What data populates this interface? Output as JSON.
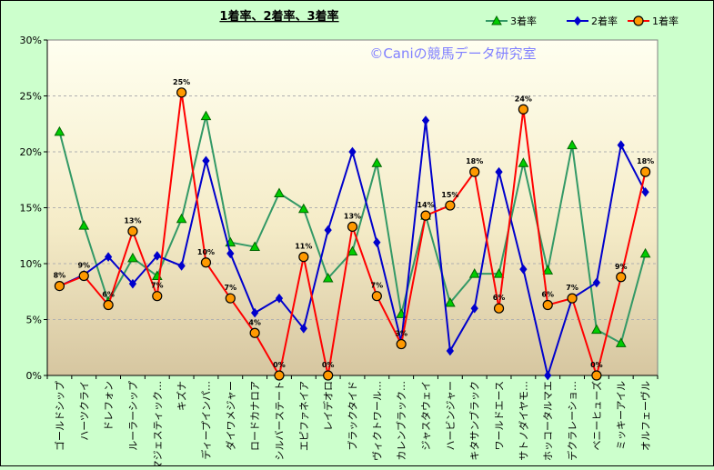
{
  "chart_data": {
    "type": "line",
    "title": "1着率、2着率、3着率",
    "watermark": "©Caniの競馬データ研究室",
    "ylim": [
      0,
      30
    ],
    "yticks": [
      "0%",
      "5%",
      "10%",
      "15%",
      "20%",
      "25%",
      "30%"
    ],
    "legend_position": "top-right",
    "grid": true,
    "categories": [
      "ゴールドシップ",
      "ハーツクライ",
      "ドレフォン",
      "ルーラーシップ",
      "マジェスティック…",
      "キズナ",
      "ディープインパ…",
      "ダイワメジャー",
      "ロードカナロア",
      "シルバーステート",
      "エピファネイア",
      "レイデオロ",
      "ブラックタイド",
      "ヴィクトワール…",
      "カレンブラック…",
      "ジャスタウェイ",
      "ハービンジャー",
      "キタサンブラック",
      "ワールドエース",
      "サトノダイヤモ…",
      "ホッコータルマエ",
      "デクラレーショ…",
      "ベニーヒューズ",
      "ミッキーアイル",
      "オルフェーヴル"
    ],
    "series": [
      {
        "name": "3着率",
        "color": "#339966",
        "marker": "triangle",
        "marker_fill": "#00cc00",
        "values": [
          21.8,
          13.4,
          6.6,
          10.5,
          8.9,
          14.0,
          23.2,
          11.9,
          11.5,
          16.3,
          14.9,
          8.7,
          11.1,
          19.0,
          5.5,
          14.3,
          6.5,
          9.1,
          9.1,
          19.0,
          9.4,
          20.6,
          4.1,
          2.9,
          10.9
        ]
      },
      {
        "name": "2着率",
        "color": "#0000cc",
        "marker": "diamond",
        "marker_fill": "#0000cc",
        "values": [
          8.0,
          9.0,
          10.6,
          8.2,
          10.7,
          9.8,
          19.2,
          10.9,
          5.6,
          6.9,
          4.2,
          13.0,
          20.0,
          11.9,
          3.0,
          22.8,
          2.2,
          6.0,
          18.2,
          9.5,
          0.0,
          6.9,
          8.3,
          20.6,
          16.4
        ]
      },
      {
        "name": "1着率",
        "color": "#ff0000",
        "marker": "circle",
        "marker_fill": "#ff9900",
        "values": [
          8.0,
          8.9,
          6.3,
          12.9,
          7.1,
          25.3,
          10.1,
          6.9,
          3.8,
          0.0,
          10.6,
          0.0,
          13.3,
          7.1,
          2.8,
          14.3,
          15.2,
          18.2,
          6.0,
          23.8,
          6.3,
          6.9,
          0.0,
          8.8,
          18.2
        ]
      }
    ],
    "data_labels": [
      "8%",
      "9%",
      "6%",
      "13%",
      "7%",
      "25%",
      "10%",
      "7%",
      "4%",
      "0%",
      "11%",
      "0%",
      "13%",
      "7%",
      "3%",
      "14%",
      "15%",
      "18%",
      "6%",
      "24%",
      "6%",
      "7%",
      "0%",
      "9%",
      "18%"
    ]
  }
}
